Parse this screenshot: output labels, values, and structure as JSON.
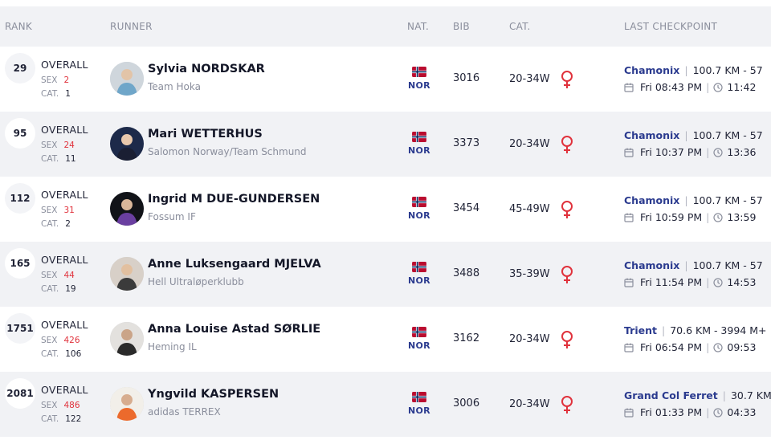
{
  "header": {
    "rank": "RANK",
    "runner": "RUNNER",
    "nat": "NAT.",
    "bib": "BIB",
    "cat": "CAT.",
    "last_checkpoint": "LAST CHECKPOINT"
  },
  "labels": {
    "overall": "OVERALL",
    "sex": "SEX",
    "cat": "CAT."
  },
  "colors": {
    "flag_red": "#ba0c2f",
    "flag_blue": "#00205b",
    "female_icon": "#e0323c",
    "accent_blue": "#2b3b8f"
  },
  "rows": [
    {
      "rank": "29",
      "sex_rank": "2",
      "cat_rank": "1",
      "name": "Sylvia NORDSKAR",
      "team": "Team Hoka",
      "nat": "NOR",
      "bib": "3016",
      "category": "20-34W",
      "checkpoint": "Chamonix",
      "distance": "100.7 KM - 57",
      "day_time": "Fri 08:43 PM",
      "duration": "11:42"
    },
    {
      "rank": "95",
      "sex_rank": "24",
      "cat_rank": "11",
      "name": "Mari WETTERHUS",
      "team": "Salomon Norway/Team Schmund",
      "nat": "NOR",
      "bib": "3373",
      "category": "20-34W",
      "checkpoint": "Chamonix",
      "distance": "100.7 KM - 57",
      "day_time": "Fri 10:37 PM",
      "duration": "13:36"
    },
    {
      "rank": "112",
      "sex_rank": "31",
      "cat_rank": "2",
      "name": "Ingrid M DUE-GUNDERSEN",
      "team": "Fossum IF",
      "nat": "NOR",
      "bib": "3454",
      "category": "45-49W",
      "checkpoint": "Chamonix",
      "distance": "100.7 KM - 57",
      "day_time": "Fri 10:59 PM",
      "duration": "13:59"
    },
    {
      "rank": "165",
      "sex_rank": "44",
      "cat_rank": "19",
      "name": "Anne Luksengaard MJELVA",
      "team": "Hell Ultraløperklubb",
      "nat": "NOR",
      "bib": "3488",
      "category": "35-39W",
      "checkpoint": "Chamonix",
      "distance": "100.7 KM - 57",
      "day_time": "Fri 11:54 PM",
      "duration": "14:53"
    },
    {
      "rank": "1751",
      "sex_rank": "426",
      "cat_rank": "106",
      "name": "Anna Louise Astad SØRLIE",
      "team": "Heming IL",
      "nat": "NOR",
      "bib": "3162",
      "category": "20-34W",
      "checkpoint": "Trient",
      "distance": "70.6 KM - 3994 M+",
      "day_time": "Fri 06:54 PM",
      "duration": "09:53"
    },
    {
      "rank": "2081",
      "sex_rank": "486",
      "cat_rank": "122",
      "name": "Yngvild KASPERSEN",
      "team": "adidas TERREX",
      "nat": "NOR",
      "bib": "3006",
      "category": "20-34W",
      "checkpoint": "Grand Col Ferret",
      "distance": "30.7 KM",
      "day_time": "Fri 01:33 PM",
      "duration": "04:33"
    }
  ]
}
